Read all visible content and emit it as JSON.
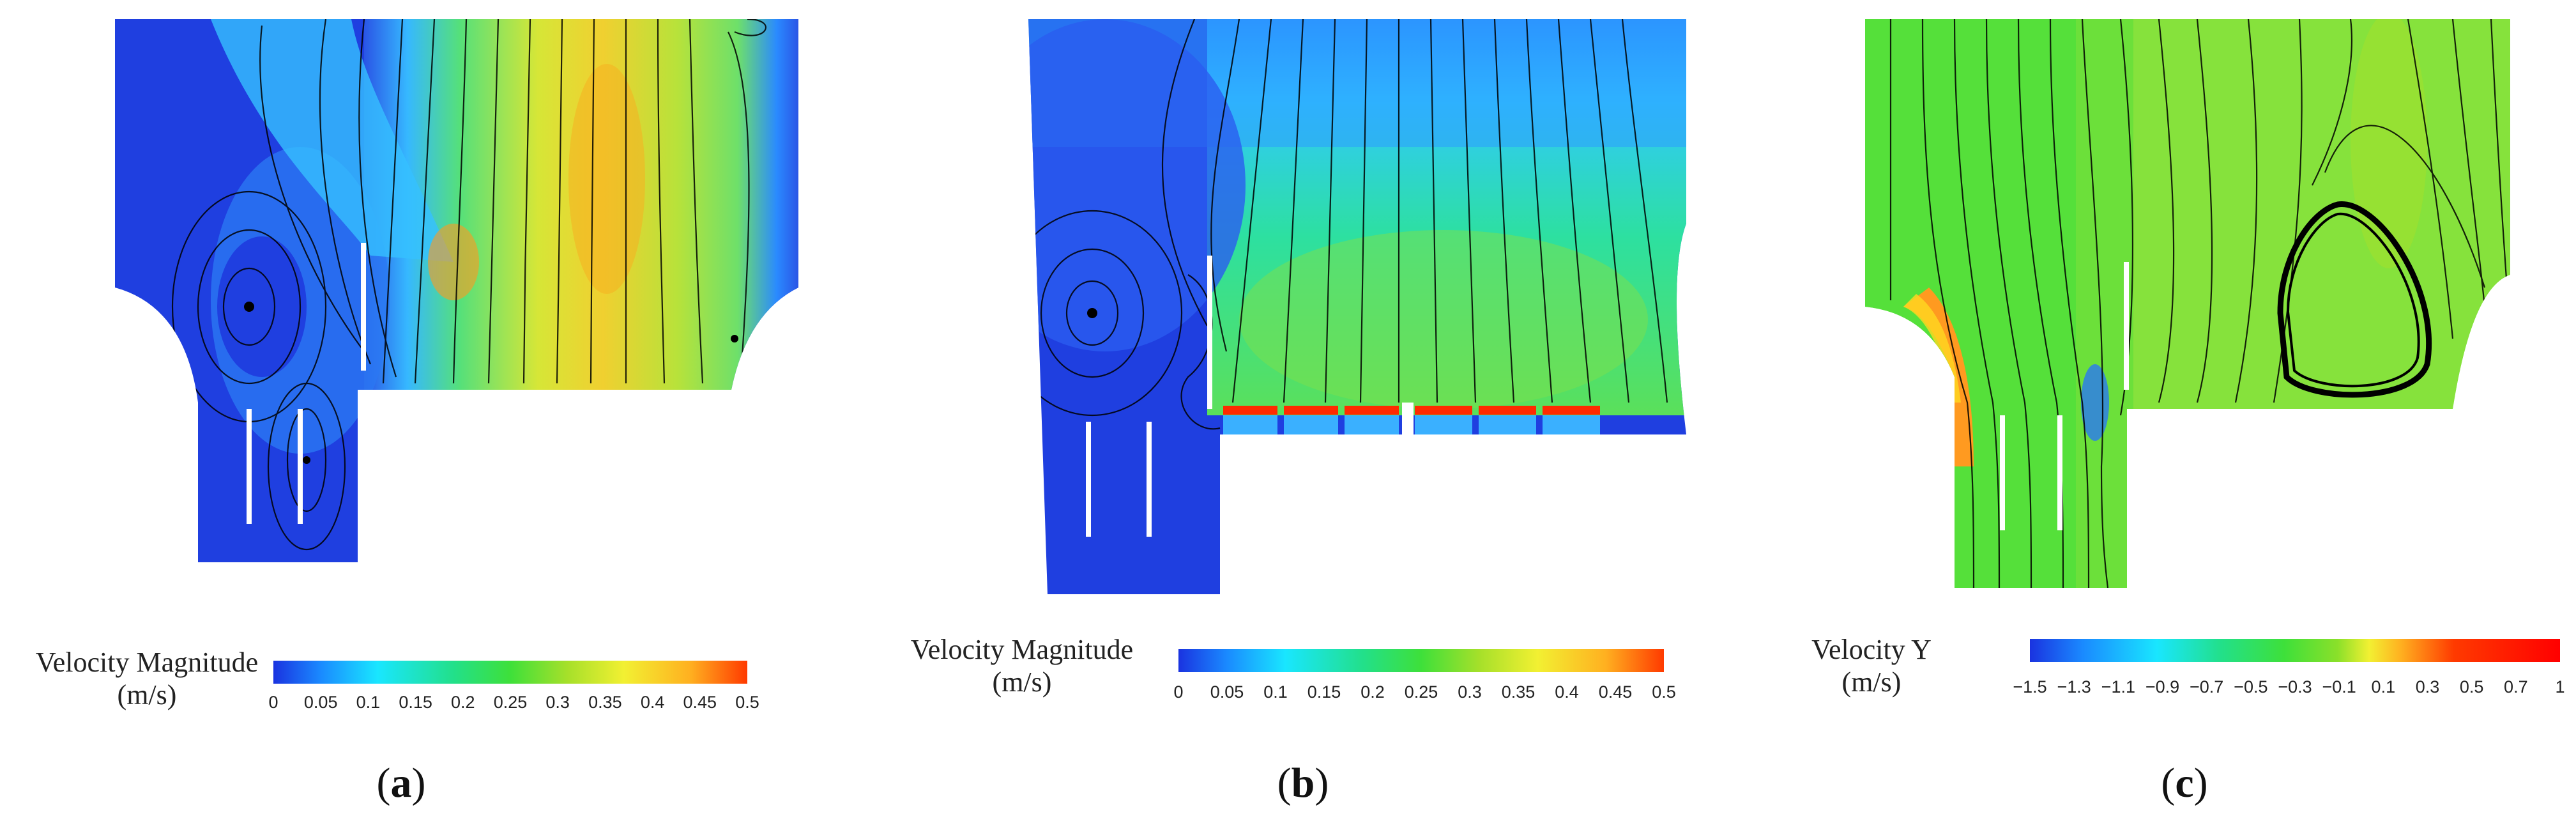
{
  "panels": [
    {
      "label": "a",
      "colorbar": {
        "title": "Velocity Magnitude",
        "unit": "(m/s)",
        "ticks": [
          "0",
          "0.05",
          "0.1",
          "0.15",
          "0.2",
          "0.25",
          "0.3",
          "0.35",
          "0.4",
          "0.45",
          "0.5"
        ]
      }
    },
    {
      "label": "b",
      "colorbar": {
        "title": "Velocity Magnitude",
        "unit": "(m/s)",
        "ticks": [
          "0",
          "0.05",
          "0.1",
          "0.15",
          "0.2",
          "0.25",
          "0.3",
          "0.35",
          "0.4",
          "0.45",
          "0.5"
        ]
      }
    },
    {
      "label": "c",
      "colorbar": {
        "title": "Velocity Y",
        "unit": "(m/s)",
        "ticks": [
          "−1.5",
          "−1.3",
          "−1.1",
          "−0.9",
          "−0.7",
          "−0.5",
          "−0.3",
          "−0.1",
          "0.1",
          "0.3",
          "0.5",
          "0.7",
          "1"
        ]
      }
    }
  ],
  "colors": {
    "jet_low": "#1a33e0",
    "jet_mid": "#22e04a",
    "jet_high": "#ff1a00",
    "baffle": "#ffffff",
    "streamline": "#000000"
  }
}
